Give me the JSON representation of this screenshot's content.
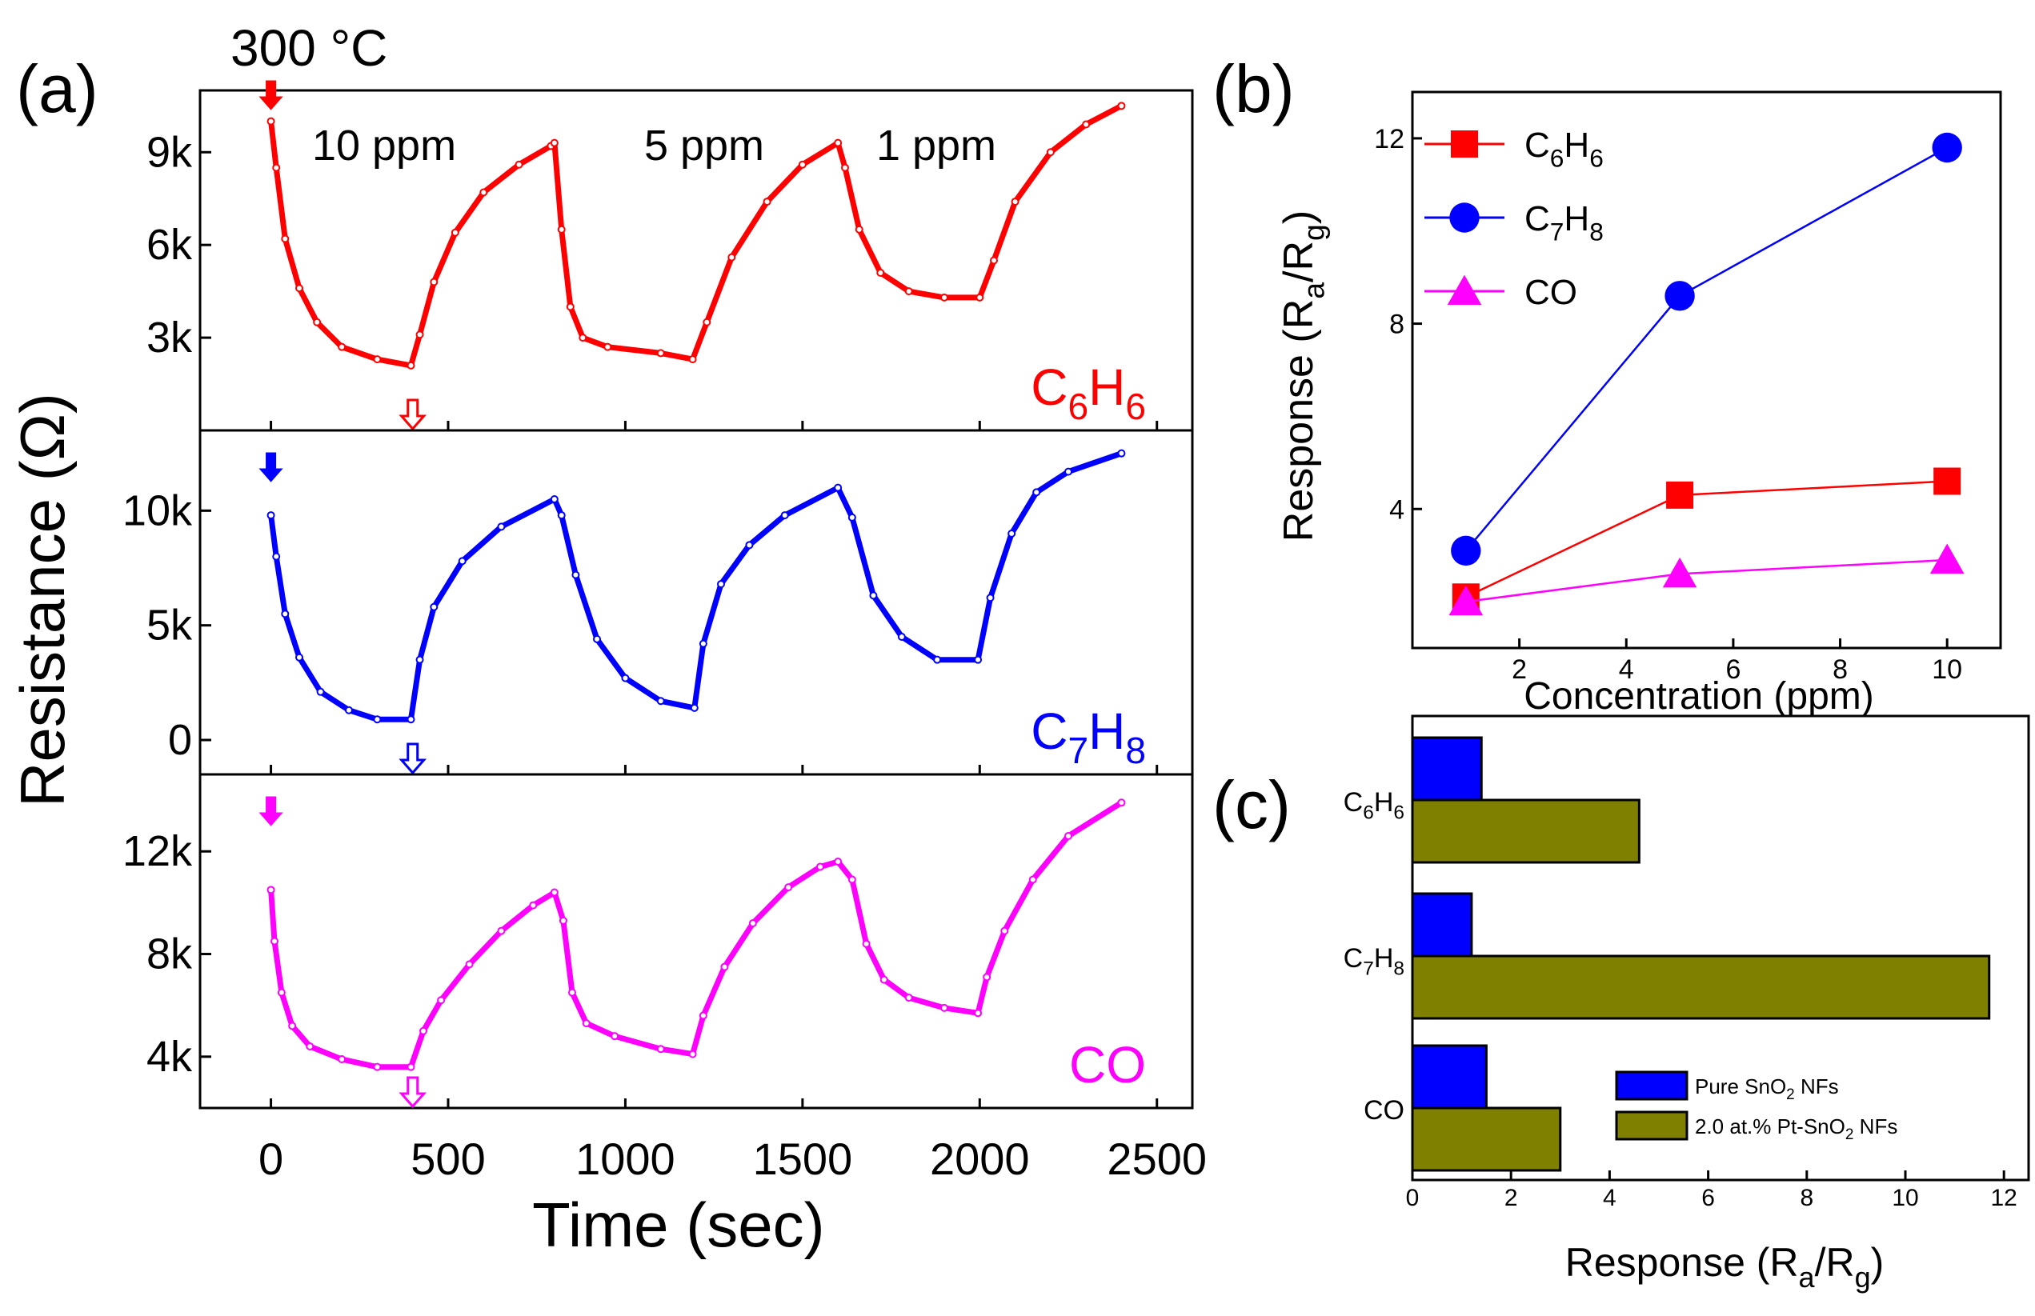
{
  "chart_data": [
    {
      "panel_label": "(a)",
      "type": "line",
      "title": "300 °C",
      "xlabel": "Time (sec)",
      "ylabel": "Resistance (Ω)",
      "xlim": [
        -200,
        2600
      ],
      "xticks": [
        0,
        500,
        1000,
        1500,
        2000,
        2500
      ],
      "xtick_labels": [
        "0",
        "500",
        "1000",
        "1500",
        "2000",
        "2500"
      ],
      "concentration_labels": [
        "10 ppm",
        "5 ppm",
        "1 ppm"
      ],
      "gas_off_time": 400,
      "subplots": [
        {
          "gas": {
            "main": "C",
            "sub1": "6",
            "mid": "H",
            "sub2": "6"
          },
          "color": "#ff0000",
          "ylim": [
            0,
            11000
          ],
          "yticks": [
            3000,
            6000,
            9000
          ],
          "ytick_labels": [
            "3k",
            "6k",
            "9k"
          ],
          "points": [
            [
              0,
              10000
            ],
            [
              15,
              8500
            ],
            [
              40,
              6200
            ],
            [
              80,
              4600
            ],
            [
              130,
              3500
            ],
            [
              200,
              2700
            ],
            [
              300,
              2300
            ],
            [
              395,
              2100
            ],
            [
              420,
              3100
            ],
            [
              460,
              4800
            ],
            [
              520,
              6400
            ],
            [
              600,
              7700
            ],
            [
              700,
              8600
            ],
            [
              790,
              9200
            ],
            [
              800,
              9300
            ],
            [
              820,
              6500
            ],
            [
              845,
              4000
            ],
            [
              880,
              3000
            ],
            [
              950,
              2700
            ],
            [
              1100,
              2500
            ],
            [
              1190,
              2300
            ],
            [
              1230,
              3500
            ],
            [
              1300,
              5600
            ],
            [
              1400,
              7400
            ],
            [
              1500,
              8600
            ],
            [
              1600,
              9300
            ],
            [
              1620,
              8500
            ],
            [
              1660,
              6500
            ],
            [
              1720,
              5100
            ],
            [
              1800,
              4500
            ],
            [
              1900,
              4300
            ],
            [
              2000,
              4300
            ],
            [
              2040,
              5500
            ],
            [
              2100,
              7400
            ],
            [
              2200,
              9000
            ],
            [
              2300,
              9900
            ],
            [
              2400,
              10500
            ]
          ]
        },
        {
          "gas": {
            "main": "C",
            "sub1": "7",
            "mid": "H",
            "sub2": "8"
          },
          "color": "#0000ff",
          "ylim": [
            -1500,
            13500
          ],
          "yticks": [
            0,
            5000,
            10000
          ],
          "ytick_labels": [
            "0",
            "5k",
            "10k"
          ],
          "points": [
            [
              0,
              9800
            ],
            [
              15,
              8000
            ],
            [
              40,
              5500
            ],
            [
              80,
              3600
            ],
            [
              140,
              2100
            ],
            [
              220,
              1300
            ],
            [
              300,
              900
            ],
            [
              395,
              900
            ],
            [
              420,
              3500
            ],
            [
              460,
              5800
            ],
            [
              540,
              7800
            ],
            [
              650,
              9300
            ],
            [
              800,
              10500
            ],
            [
              820,
              9800
            ],
            [
              860,
              7200
            ],
            [
              920,
              4400
            ],
            [
              1000,
              2700
            ],
            [
              1100,
              1700
            ],
            [
              1195,
              1400
            ],
            [
              1220,
              4200
            ],
            [
              1270,
              6800
            ],
            [
              1350,
              8500
            ],
            [
              1450,
              9800
            ],
            [
              1600,
              11000
            ],
            [
              1640,
              9700
            ],
            [
              1700,
              6300
            ],
            [
              1780,
              4500
            ],
            [
              1880,
              3500
            ],
            [
              1995,
              3500
            ],
            [
              2030,
              6200
            ],
            [
              2090,
              9000
            ],
            [
              2160,
              10800
            ],
            [
              2250,
              11700
            ],
            [
              2400,
              12500
            ]
          ]
        },
        {
          "gas": {
            "main": "CO"
          },
          "color": "#ff00ff",
          "ylim": [
            2000,
            15000
          ],
          "yticks": [
            4000,
            8000,
            12000
          ],
          "ytick_labels": [
            "4k",
            "8k",
            "12k"
          ],
          "points": [
            [
              0,
              10500
            ],
            [
              10,
              8500
            ],
            [
              30,
              6500
            ],
            [
              60,
              5200
            ],
            [
              110,
              4400
            ],
            [
              200,
              3900
            ],
            [
              300,
              3600
            ],
            [
              395,
              3600
            ],
            [
              430,
              5000
            ],
            [
              480,
              6200
            ],
            [
              560,
              7600
            ],
            [
              650,
              8900
            ],
            [
              740,
              9900
            ],
            [
              800,
              10400
            ],
            [
              825,
              9300
            ],
            [
              850,
              6500
            ],
            [
              890,
              5300
            ],
            [
              970,
              4800
            ],
            [
              1100,
              4300
            ],
            [
              1190,
              4100
            ],
            [
              1220,
              5600
            ],
            [
              1280,
              7500
            ],
            [
              1360,
              9200
            ],
            [
              1460,
              10600
            ],
            [
              1550,
              11400
            ],
            [
              1600,
              11600
            ],
            [
              1640,
              10900
            ],
            [
              1680,
              8400
            ],
            [
              1730,
              7000
            ],
            [
              1800,
              6300
            ],
            [
              1900,
              5900
            ],
            [
              1995,
              5700
            ],
            [
              2020,
              7100
            ],
            [
              2070,
              8900
            ],
            [
              2150,
              10900
            ],
            [
              2250,
              12600
            ],
            [
              2400,
              13900
            ]
          ]
        }
      ]
    },
    {
      "panel_label": "(b)",
      "type": "line",
      "xlabel": "Concentration (ppm)",
      "ylabel": {
        "text": "Response (R",
        "sub1": "a",
        "mid": "/R",
        "sub2": "g",
        "close": ")"
      },
      "xlim": [
        0,
        11
      ],
      "ylim": [
        1,
        13
      ],
      "xticks": [
        2,
        4,
        6,
        8,
        10
      ],
      "xtick_labels": [
        "2",
        "4",
        "6",
        "8",
        "10"
      ],
      "yticks": [
        4,
        8,
        12
      ],
      "ytick_labels": [
        "4",
        "8",
        "12"
      ],
      "legend_position": "top-left",
      "x": [
        1,
        5,
        10
      ],
      "series": [
        {
          "name": {
            "main": "C",
            "sub1": "6",
            "mid": "H",
            "sub2": "6"
          },
          "marker": "square",
          "color": "#ff0000",
          "values": [
            2.1,
            4.3,
            4.6
          ]
        },
        {
          "name": {
            "main": "C",
            "sub1": "7",
            "mid": "H",
            "sub2": "8"
          },
          "marker": "circle",
          "color": "#0000ff",
          "values": [
            3.1,
            8.6,
            11.8
          ]
        },
        {
          "name": {
            "main": "CO"
          },
          "marker": "triangle",
          "color": "#ff00ff",
          "values": [
            2.0,
            2.6,
            2.9
          ]
        }
      ]
    },
    {
      "panel_label": "(c)",
      "type": "bar",
      "orientation": "horizontal",
      "xlabel": {
        "text": "Response (R",
        "sub1": "a",
        "mid": "/R",
        "sub2": "g",
        "close": ")"
      },
      "xlim": [
        0,
        12.5
      ],
      "xticks": [
        0,
        2,
        4,
        6,
        8,
        10,
        12
      ],
      "xtick_labels": [
        "0",
        "2",
        "4",
        "6",
        "8",
        "10",
        "12"
      ],
      "legend_position": "bottom-right",
      "categories": [
        {
          "main": "C",
          "sub1": "6",
          "mid": "H",
          "sub2": "6"
        },
        {
          "main": "C",
          "sub1": "7",
          "mid": "H",
          "sub2": "8"
        },
        {
          "main": "CO"
        }
      ],
      "series": [
        {
          "name": {
            "text": "Pure SnO",
            "sub": "2",
            "after": " NFs"
          },
          "color": "#0000ff",
          "values": [
            1.4,
            1.2,
            1.5
          ]
        },
        {
          "name": {
            "text": "2.0 at.% Pt-SnO",
            "sub": "2",
            "after": " NFs"
          },
          "color": "#808000",
          "values": [
            4.6,
            11.7,
            3.0
          ]
        }
      ]
    }
  ]
}
